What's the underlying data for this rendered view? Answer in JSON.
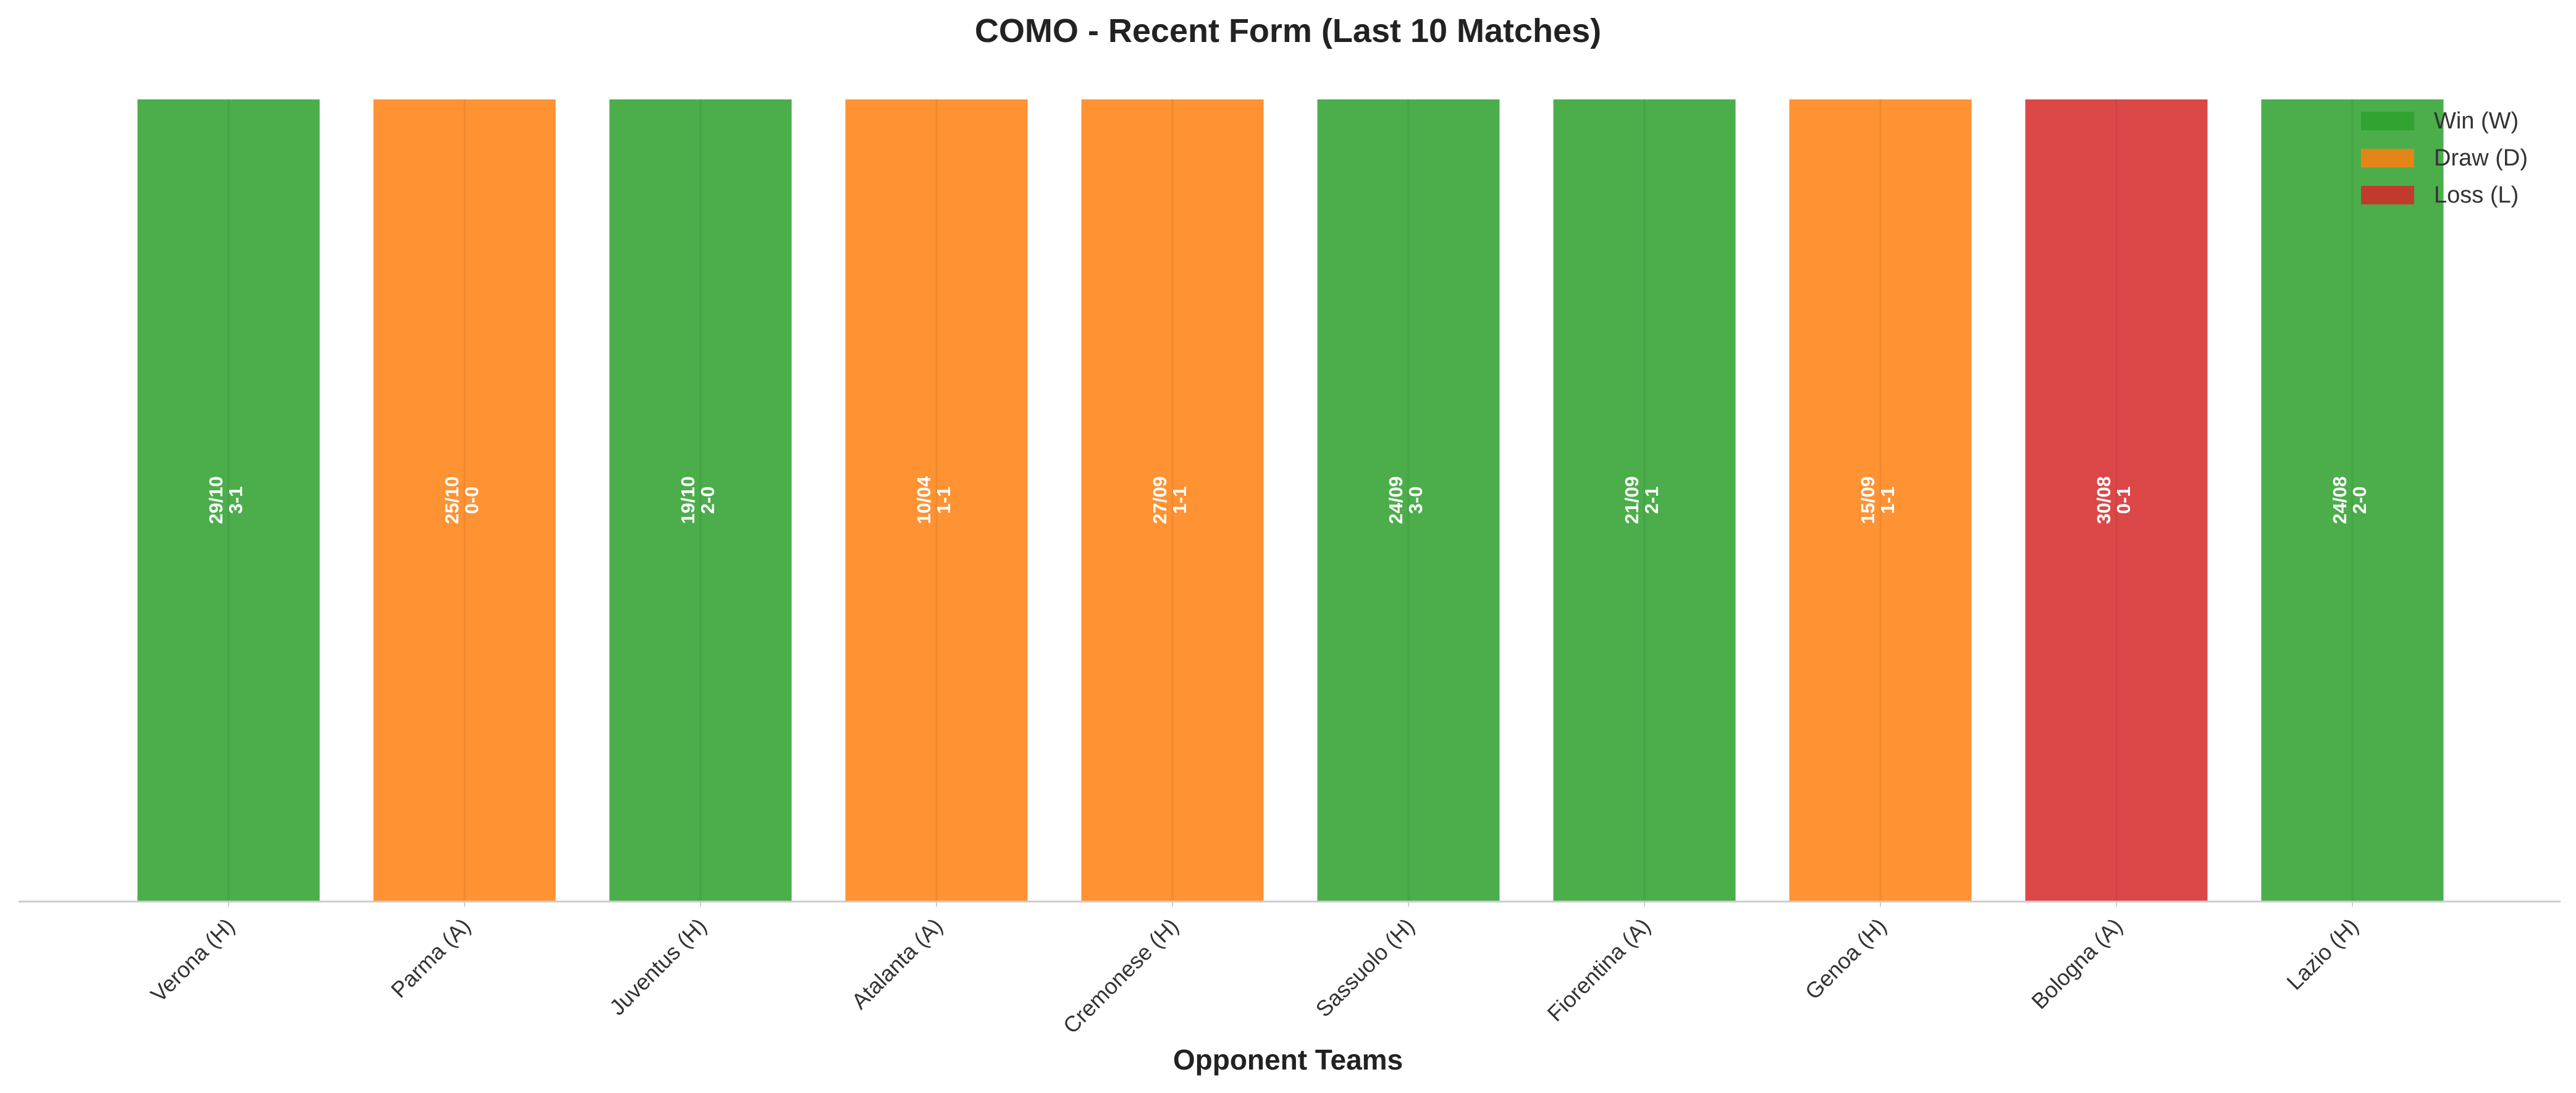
{
  "chart_data": {
    "type": "bar",
    "title": "COMO - Recent Form (Last 10 Matches)",
    "xlabel": "Opponent Teams",
    "ylabel": "",
    "grid": false,
    "legend_position": "top-right",
    "categories": [
      "Verona (H)",
      "Parma (A)",
      "Juventus (H)",
      "Atalanta (A)",
      "Cremonese (H)",
      "Sassuolo (H)",
      "Fiorentina (A)",
      "Genoa (H)",
      "Bologna (A)",
      "Lazio (H)"
    ],
    "values": [
      1,
      1,
      1,
      1,
      1,
      1,
      1,
      1,
      1,
      1
    ],
    "results": [
      "W",
      "D",
      "W",
      "D",
      "D",
      "W",
      "W",
      "D",
      "L",
      "W"
    ],
    "dates": [
      "29/10",
      "25/10",
      "19/10",
      "10/04",
      "27/09",
      "24/09",
      "21/09",
      "15/09",
      "30/08",
      "24/08"
    ],
    "scores": [
      "3-1",
      "0-0",
      "2-0",
      "1-1",
      "1-1",
      "3-0",
      "2-1",
      "1-1",
      "0-1",
      "2-0"
    ],
    "legend": [
      {
        "key": "W",
        "label": "Win (W)",
        "color": "#2ca02c"
      },
      {
        "key": "D",
        "label": "Draw (D)",
        "color": "#ff7f0e"
      },
      {
        "key": "L",
        "label": "Loss (L)",
        "color": "#d62728"
      }
    ]
  }
}
